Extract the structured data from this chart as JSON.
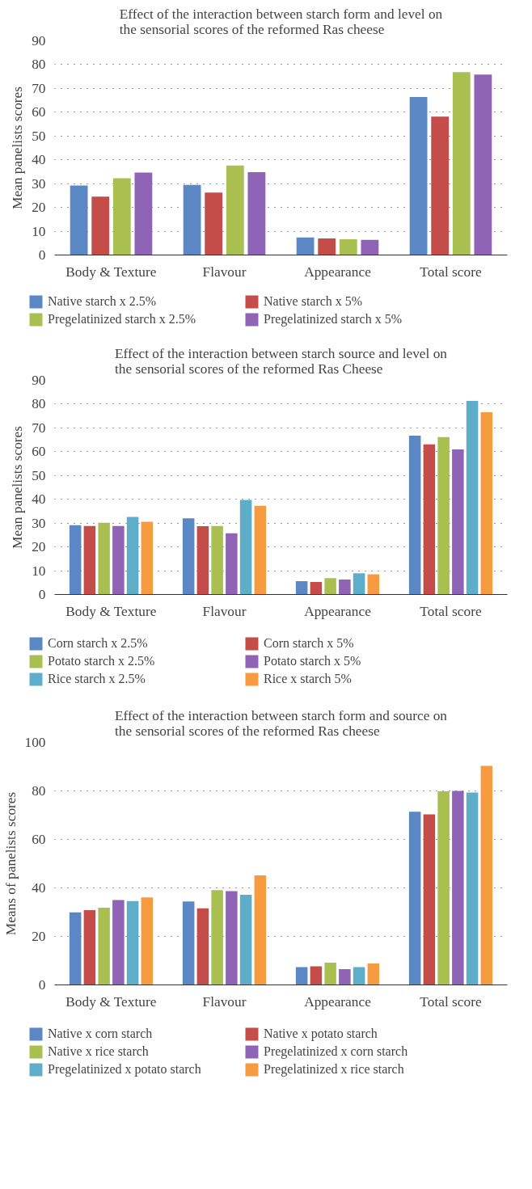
{
  "chart_data": [
    {
      "type": "bar",
      "title": "Effect of the interaction between starch form and level on\nthe sensorial scores of the reformed Ras cheese",
      "ylabel": "Mean panelists scores",
      "categories": [
        "Body & Texture",
        "Flavour",
        "Appearance",
        "Total score"
      ],
      "ylim": [
        0,
        90
      ],
      "yticks": [
        0,
        10,
        20,
        30,
        40,
        50,
        60,
        70,
        80,
        90
      ],
      "grid": "y",
      "legend": "bottom",
      "series": [
        {
          "name": "Native starch x 2.5%",
          "color": "#5b87c5",
          "values": [
            29.2,
            29.5,
            7.4,
            66.4
          ]
        },
        {
          "name": "Native starch x 5%",
          "color": "#c44d4a",
          "values": [
            24.5,
            26.2,
            7.0,
            58.2
          ]
        },
        {
          "name": "Pregelatinized starch x 2.5%",
          "color": "#a9c050",
          "values": [
            32.3,
            37.6,
            6.6,
            76.8
          ]
        },
        {
          "name": "Pregelatinized starch x 5%",
          "color": "#8f63b5",
          "values": [
            34.6,
            34.8,
            6.4,
            75.8
          ]
        }
      ]
    },
    {
      "type": "bar",
      "title": "Effect of the interaction between starch source and level on\nthe sensorial scores of the reformed Ras Cheese",
      "ylabel": "Mean panelists scores",
      "categories": [
        "Body & Texture",
        "Flavour",
        "Appearance",
        "Total score"
      ],
      "ylim": [
        0,
        90
      ],
      "yticks": [
        0,
        10,
        20,
        30,
        40,
        50,
        60,
        70,
        80,
        90
      ],
      "grid": "y",
      "legend": "bottom",
      "series": [
        {
          "name": "Corn starch x 2.5%",
          "color": "#5b87c5",
          "values": [
            29.1,
            32.0,
            5.6,
            66.7
          ]
        },
        {
          "name": "Corn starch x 5%",
          "color": "#c44d4a",
          "values": [
            28.8,
            28.7,
            5.3,
            63.1
          ]
        },
        {
          "name": "Potato starch x 2.5%",
          "color": "#a9c050",
          "values": [
            30.1,
            28.8,
            6.9,
            66.1
          ]
        },
        {
          "name": "Potato starch x 5%",
          "color": "#8f63b5",
          "values": [
            28.8,
            25.7,
            6.3,
            61.0
          ]
        },
        {
          "name": "Rice starch x 2.5%",
          "color": "#5faec9",
          "values": [
            32.6,
            39.7,
            8.9,
            81.3
          ]
        },
        {
          "name": "Rice x starch 5%",
          "color": "#f79b40",
          "values": [
            30.6,
            37.3,
            8.5,
            76.6
          ]
        }
      ]
    },
    {
      "type": "bar",
      "title": "Effect of the interaction between starch form and source on\nthe sensorial scores of the reformed Ras cheese",
      "ylabel": "Means of panelists scores",
      "categories": [
        "Body & Texture",
        "Flavour",
        "Appearance",
        "Total score"
      ],
      "ylim": [
        0,
        100
      ],
      "yticks": [
        0,
        20,
        40,
        60,
        80,
        100
      ],
      "grid": "y",
      "legend": "bottom",
      "series": [
        {
          "name": "Native x corn starch",
          "color": "#5b87c5",
          "values": [
            29.9,
            34.4,
            7.3,
            71.4
          ]
        },
        {
          "name": "Native x potato starch",
          "color": "#c44d4a",
          "values": [
            30.8,
            31.6,
            7.7,
            70.3
          ]
        },
        {
          "name": "Native x rice starch",
          "color": "#a9c050",
          "values": [
            31.8,
            39.1,
            9.2,
            79.8
          ]
        },
        {
          "name": "Pregelatinized x corn starch",
          "color": "#8f63b5",
          "values": [
            35.0,
            38.7,
            6.5,
            80.0
          ]
        },
        {
          "name": "Pregelatinized x potato starch",
          "color": "#5faec9",
          "values": [
            34.6,
            37.2,
            7.3,
            79.3
          ]
        },
        {
          "name": "Pregelatinized x rice starch",
          "color": "#f79b40",
          "values": [
            36.1,
            45.2,
            8.8,
            90.3
          ]
        }
      ]
    }
  ]
}
